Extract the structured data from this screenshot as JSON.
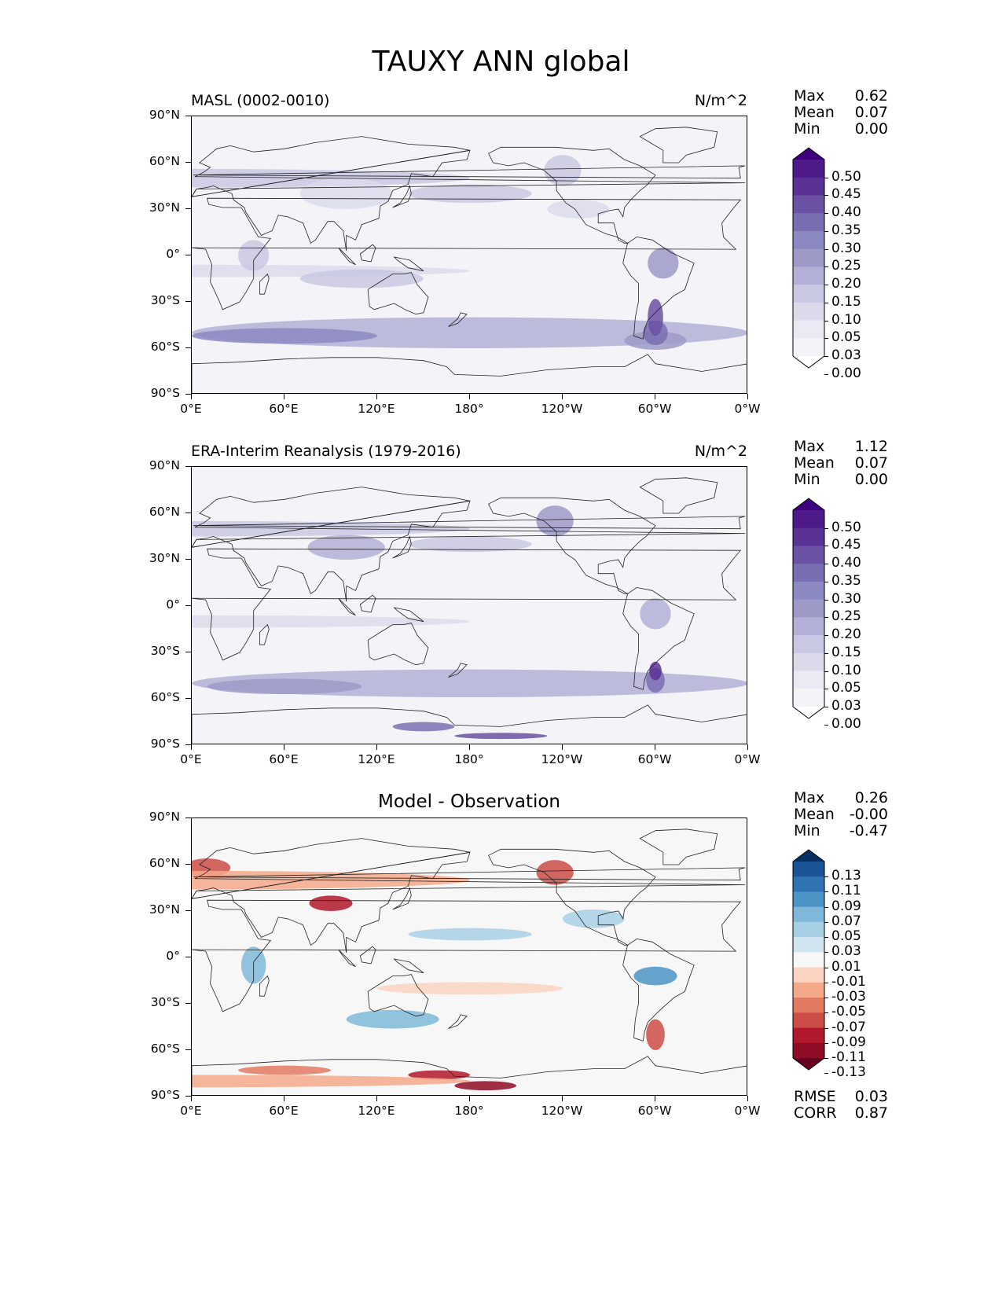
{
  "figure": {
    "title": "TAUXY ANN global"
  },
  "axes": {
    "lat_labels": [
      "90°N",
      "60°N",
      "30°N",
      "0°",
      "30°S",
      "60°S",
      "90°S"
    ],
    "lon_labels": [
      "0°E",
      "60°E",
      "120°E",
      "180°",
      "120°W",
      "60°W",
      "0°W"
    ]
  },
  "panels": [
    {
      "id": "model",
      "title_left": "MASL (0002-0010)",
      "title_center": "",
      "title_right": "N/m^2",
      "stats": [
        {
          "label": "Max",
          "value": "0.62"
        },
        {
          "label": "Mean",
          "value": "0.07"
        },
        {
          "label": "Min",
          "value": "0.00"
        }
      ],
      "colorbar": {
        "labels": [
          "0.50",
          "0.45",
          "0.40",
          "0.35",
          "0.30",
          "0.25",
          "0.20",
          "0.15",
          "0.10",
          "0.05",
          "0.03",
          "0.00"
        ],
        "colors": [
          "#3f007d",
          "#4d1a8a",
          "#5a3296",
          "#6a51a3",
          "#7a6eb3",
          "#8c88c2",
          "#9e9ac8",
          "#b2b0d6",
          "#c9c8e3",
          "#dadaeb",
          "#eaeaf4",
          "#f4f3f8",
          "#ffffff"
        ]
      },
      "extra_stats": []
    },
    {
      "id": "obs",
      "title_left": "ERA-Interim Reanalysis (1979-2016)",
      "title_center": "",
      "title_right": "N/m^2",
      "stats": [
        {
          "label": "Max",
          "value": "1.12"
        },
        {
          "label": "Mean",
          "value": "0.07"
        },
        {
          "label": "Min",
          "value": "0.00"
        }
      ],
      "colorbar": {
        "labels": [
          "0.50",
          "0.45",
          "0.40",
          "0.35",
          "0.30",
          "0.25",
          "0.20",
          "0.15",
          "0.10",
          "0.05",
          "0.03",
          "0.00"
        ],
        "colors": [
          "#3f007d",
          "#4d1a8a",
          "#5a3296",
          "#6a51a3",
          "#7a6eb3",
          "#8c88c2",
          "#9e9ac8",
          "#b2b0d6",
          "#c9c8e3",
          "#dadaeb",
          "#eaeaf4",
          "#f4f3f8",
          "#ffffff"
        ]
      },
      "extra_stats": []
    },
    {
      "id": "diff",
      "title_left": "",
      "title_center": "Model - Observation",
      "title_right": "",
      "stats": [
        {
          "label": "Max",
          "value": "0.26"
        },
        {
          "label": "Mean",
          "value": "-0.00"
        },
        {
          "label": "Min",
          "value": "-0.47"
        }
      ],
      "colorbar": {
        "labels": [
          "0.13",
          "0.11",
          "0.09",
          "0.07",
          "0.05",
          "0.03",
          "0.01",
          "-0.01",
          "-0.03",
          "-0.05",
          "-0.07",
          "-0.09",
          "-0.11",
          "-0.13"
        ],
        "colors": [
          "#053061",
          "#1a5596",
          "#2f73b3",
          "#4b94c5",
          "#7fb8d9",
          "#a8d0e5",
          "#d1e5f0",
          "#f7f7f7",
          "#fbd4c1",
          "#f4a98a",
          "#e27a62",
          "#cc4c46",
          "#b2182b",
          "#8e0c25",
          "#67001f"
        ]
      },
      "extra_stats": [
        {
          "label": "RMSE",
          "value": "0.03"
        },
        {
          "label": "CORR",
          "value": "0.87"
        }
      ]
    }
  ]
}
